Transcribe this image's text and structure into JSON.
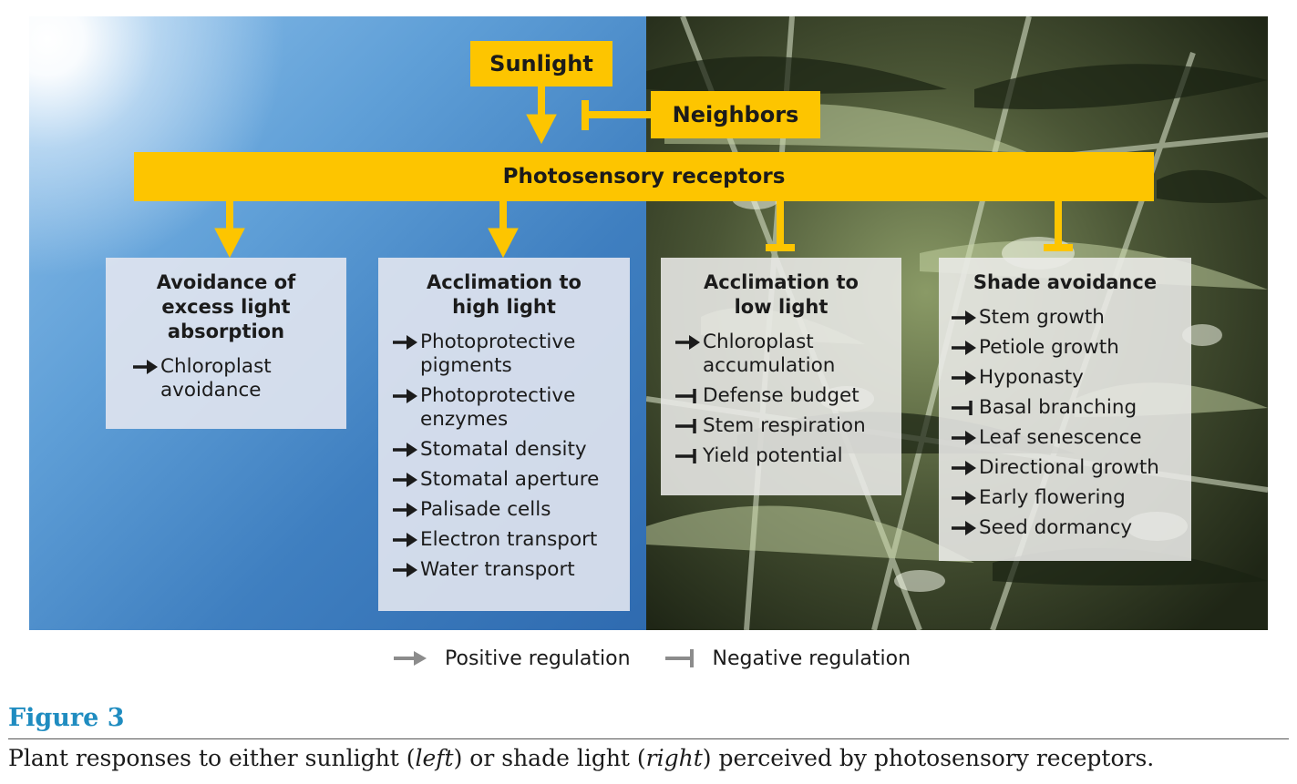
{
  "inputs": {
    "sunlight": "Sunlight",
    "neighbors": "Neighbors"
  },
  "receptors": "Photosensory receptors",
  "boxes": [
    {
      "title": [
        "Avoidance of",
        "excess light",
        "absorption"
      ],
      "items": [
        {
          "reg": "positive",
          "lines": [
            "Chloroplast",
            "avoidance"
          ]
        }
      ]
    },
    {
      "title": [
        "Acclimation to",
        "high light"
      ],
      "items": [
        {
          "reg": "positive",
          "lines": [
            "Photoprotective",
            "pigments"
          ]
        },
        {
          "reg": "positive",
          "lines": [
            "Photoprotective",
            "enzymes"
          ]
        },
        {
          "reg": "positive",
          "lines": [
            "Stomatal density"
          ]
        },
        {
          "reg": "positive",
          "lines": [
            "Stomatal aperture"
          ]
        },
        {
          "reg": "positive",
          "lines": [
            "Palisade cells"
          ]
        },
        {
          "reg": "positive",
          "lines": [
            "Electron transport"
          ]
        },
        {
          "reg": "positive",
          "lines": [
            "Water transport"
          ]
        }
      ]
    },
    {
      "title": [
        "Acclimation to",
        "low light"
      ],
      "items": [
        {
          "reg": "positive",
          "lines": [
            "Chloroplast",
            "accumulation"
          ]
        },
        {
          "reg": "negative",
          "lines": [
            "Defense budget"
          ]
        },
        {
          "reg": "negative",
          "lines": [
            "Stem respiration"
          ]
        },
        {
          "reg": "negative",
          "lines": [
            "Yield potential"
          ]
        }
      ]
    },
    {
      "title": [
        "Shade avoidance"
      ],
      "items": [
        {
          "reg": "positive",
          "lines": [
            "Stem growth"
          ]
        },
        {
          "reg": "positive",
          "lines": [
            "Petiole growth"
          ]
        },
        {
          "reg": "positive",
          "lines": [
            "Hyponasty"
          ]
        },
        {
          "reg": "negative",
          "lines": [
            "Basal branching"
          ]
        },
        {
          "reg": "positive",
          "lines": [
            "Leaf senescence"
          ]
        },
        {
          "reg": "positive",
          "lines": [
            "Directional growth"
          ]
        },
        {
          "reg": "positive",
          "lines": [
            "Early flowering"
          ]
        },
        {
          "reg": "positive",
          "lines": [
            "Seed dormancy"
          ]
        }
      ]
    }
  ],
  "legend": {
    "positive": "Positive regulation",
    "negative": "Negative regulation"
  },
  "figure": {
    "label": "Figure 3",
    "caption_parts": [
      "Plant responses to either sunlight (",
      "left",
      ") or shade light (",
      "right",
      ") perceived by photosensory receptors."
    ]
  },
  "colors": {
    "yellow": "#fdc500",
    "caption_blue": "#1f8cc0",
    "legend_gray": "#8c8c8c"
  }
}
